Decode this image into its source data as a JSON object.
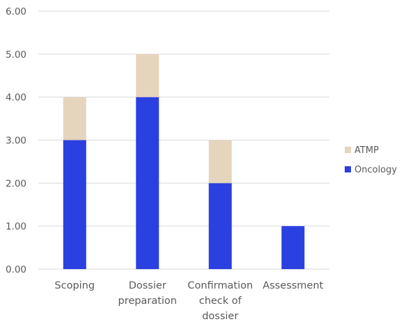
{
  "chart_data": {
    "type": "bar",
    "stacked": true,
    "title": "",
    "xlabel": "",
    "ylabel": "",
    "categories": [
      [
        "Scoping"
      ],
      [
        "Dossier",
        "preparation"
      ],
      [
        "Confirmation",
        "check of",
        "dossier"
      ],
      [
        "Assessment"
      ]
    ],
    "series": [
      {
        "name": "Oncology",
        "values": [
          3,
          4,
          2,
          1
        ],
        "color": "#2b40e0"
      },
      {
        "name": "ATMP",
        "values": [
          1,
          1,
          1,
          0
        ],
        "color": "#e6d5bd"
      }
    ],
    "ylim": [
      0,
      6
    ],
    "yticks": [
      "0.00",
      "1.00",
      "2.00",
      "3.00",
      "4.00",
      "5.00",
      "6.00"
    ],
    "grid": true,
    "legend_position": "right",
    "legend_order": [
      "ATMP",
      "Oncology"
    ]
  }
}
